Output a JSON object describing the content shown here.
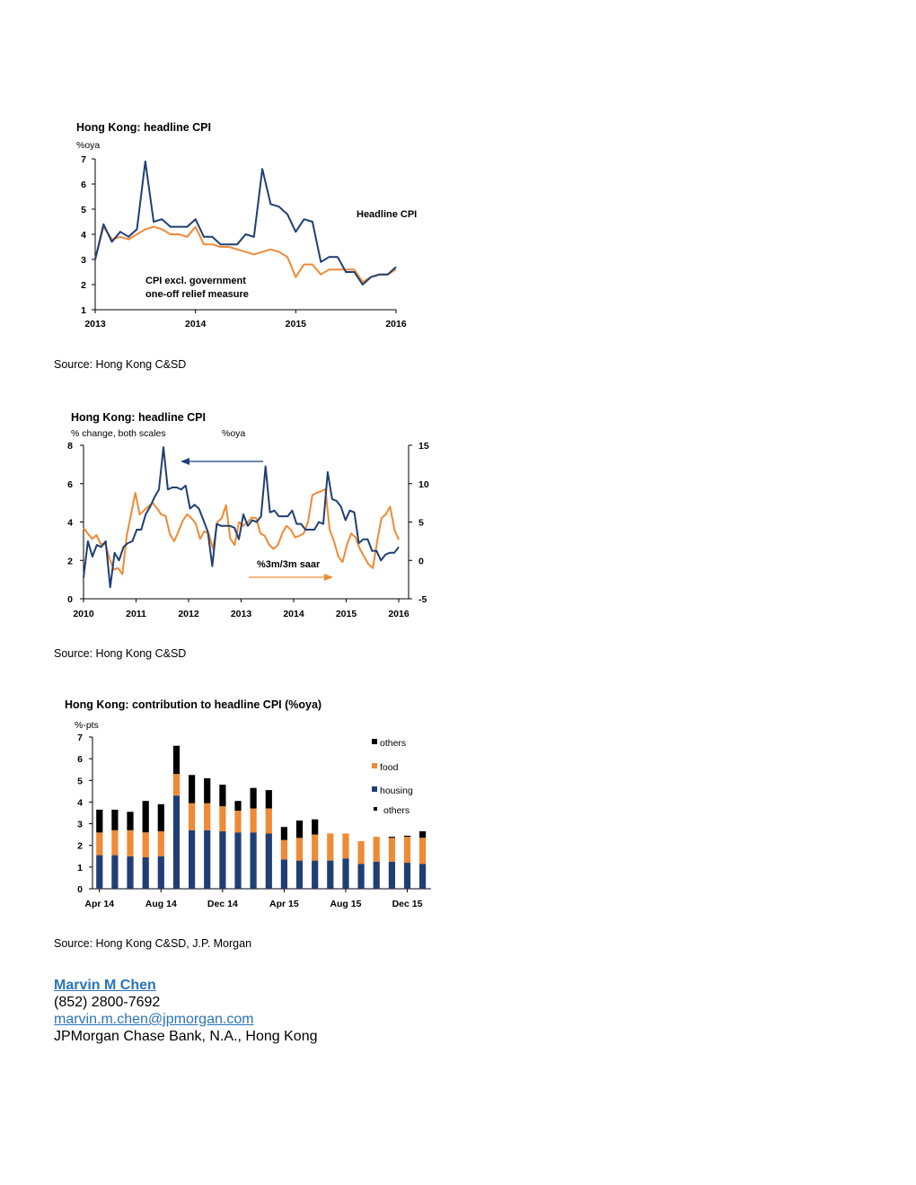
{
  "colors": {
    "navy": "#1f3f74",
    "orange": "#ef8a36",
    "black": "#000000",
    "link": "#2b73b7"
  },
  "charts": {
    "c1": {
      "source": "Source: Hong Kong C&SD",
      "chart_data": {
        "type": "line",
        "title": "Hong Kong: headline CPI",
        "unit_label": "%oya",
        "x_ticks": [
          "2013",
          "2014",
          "2015",
          "2016"
        ],
        "y_ticks": [
          "1",
          "2",
          "3",
          "4",
          "5",
          "6",
          "7"
        ],
        "ylim": [
          1,
          7
        ],
        "annotations": [
          "Headline CPI",
          "CPI excl. government",
          "one-off relief measure"
        ],
        "series": [
          {
            "name": "Headline CPI",
            "color": "#1f3f74",
            "values": [
              3.0,
              4.4,
              3.7,
              4.1,
              3.9,
              4.2,
              6.9,
              4.5,
              4.6,
              4.3,
              4.3,
              4.3,
              4.6,
              3.9,
              3.9,
              3.6,
              3.6,
              3.6,
              4.0,
              3.9,
              6.6,
              5.2,
              5.1,
              4.8,
              4.1,
              4.6,
              4.5,
              2.9,
              3.1,
              3.1,
              2.5,
              2.5,
              2.0,
              2.3,
              2.4,
              2.4,
              2.7
            ]
          },
          {
            "name": "CPI excl. government one-off relief measure",
            "color": "#ef8a36",
            "values": [
              3.0,
              4.3,
              3.8,
              3.9,
              3.8,
              4.0,
              4.2,
              4.3,
              4.2,
              4.0,
              4.0,
              3.9,
              4.3,
              3.6,
              3.6,
              3.5,
              3.5,
              3.4,
              3.3,
              3.2,
              3.3,
              3.4,
              3.3,
              3.1,
              2.3,
              2.8,
              2.8,
              2.4,
              2.6,
              2.6,
              2.6,
              2.6,
              2.1,
              2.3,
              2.4,
              2.4,
              2.6
            ]
          }
        ]
      }
    },
    "c2": {
      "source": "Source: Hong Kong C&SD",
      "chart_data": {
        "type": "line",
        "title": "Hong Kong: headline CPI",
        "left_unit": "% change, both scales",
        "right_unit": "%oya",
        "x_ticks": [
          "2010",
          "2011",
          "2012",
          "2013",
          "2014",
          "2015",
          "2016"
        ],
        "y_left_ticks": [
          "0",
          "2",
          "4",
          "6",
          "8"
        ],
        "y_right_ticks": [
          "-5",
          "0",
          "5",
          "10",
          "15"
        ],
        "ylim_left": [
          0,
          8
        ],
        "ylim_right": [
          -5,
          15
        ],
        "annotations": [
          "%3m/3m saar"
        ],
        "series": [
          {
            "name": "%oya (left axis)",
            "color": "#1f3f74",
            "axis": "left",
            "values": [
              1.1,
              3.0,
              2.2,
              2.8,
              2.7,
              3.0,
              0.6,
              2.4,
              2.0,
              2.7,
              2.9,
              3.0,
              3.6,
              3.6,
              4.4,
              4.8,
              5.3,
              5.7,
              7.9,
              5.7,
              5.8,
              5.8,
              5.7,
              5.9,
              4.7,
              4.9,
              4.7,
              4.1,
              3.5,
              1.7,
              3.9,
              3.8,
              3.8,
              3.8,
              3.7,
              3.1,
              4.4,
              3.8,
              4.1,
              4.0,
              4.3,
              6.9,
              4.5,
              4.6,
              4.3,
              4.3,
              4.3,
              4.6,
              3.9,
              3.9,
              3.6,
              3.6,
              3.6,
              4.0,
              3.9,
              6.6,
              5.2,
              5.1,
              4.8,
              4.1,
              4.6,
              4.5,
              2.9,
              3.1,
              3.1,
              2.5,
              2.5,
              2.0,
              2.3,
              2.4,
              2.4,
              2.7
            ]
          },
          {
            "name": "%3m/3m saar (right axis)",
            "color": "#ef8a36",
            "axis": "right",
            "values": [
              4.2,
              3.5,
              2.8,
              3.3,
              2.1,
              2.2,
              0.3,
              -1.2,
              -1.0,
              -1.8,
              3.2,
              6.0,
              8.8,
              6.0,
              6.5,
              7.0,
              7.5,
              6.8,
              6.0,
              5.8,
              3.4,
              2.5,
              3.8,
              5.2,
              6.0,
              5.5,
              4.8,
              2.8,
              3.8,
              3.5,
              1.5,
              5.0,
              5.5,
              7.2,
              2.8,
              2.0,
              5.0,
              4.5,
              5.0,
              5.6,
              5.5,
              3.5,
              3.2,
              2.0,
              1.5,
              2.0,
              3.5,
              4.5,
              4.0,
              3.0,
              3.2,
              3.5,
              5.0,
              8.5,
              8.8,
              9.0,
              9.3,
              4.0,
              2.5,
              0.5,
              -0.2,
              2.0,
              3.5,
              3.0,
              1.5,
              0.5,
              -0.5,
              -1.0,
              2.5,
              5.5,
              6.0,
              7.0,
              4.0,
              2.7
            ]
          }
        ]
      }
    },
    "c3": {
      "source": "Source: Hong Kong C&SD, J.P. Morgan",
      "chart_data": {
        "type": "bar",
        "stacked": true,
        "title": "Hong Kong: contribution to headline CPI (%oya)",
        "unit_label": "%-pts",
        "x_ticks": [
          "Apr 14",
          "Aug 14",
          "Dec 14",
          "Apr 15",
          "Aug 15",
          "Dec 15"
        ],
        "y_ticks": [
          "0",
          "1",
          "2",
          "3",
          "4",
          "5",
          "6",
          "7"
        ],
        "ylim": [
          0,
          7
        ],
        "categories": [
          "Apr 14",
          "May 14",
          "Jun 14",
          "Jul 14",
          "Aug 14",
          "Sep 14",
          "Oct 14",
          "Nov 14",
          "Dec 14",
          "Jan 15",
          "Feb 15",
          "Mar 15",
          "Apr 15",
          "May 15",
          "Jun 15",
          "Jul 15",
          "Aug 15",
          "Sep 15",
          "Oct 15",
          "Nov 15",
          "Dec 15",
          "Jan 16"
        ],
        "legend": [
          "others",
          "food",
          "housing",
          "others"
        ],
        "series": [
          {
            "name": "housing",
            "color": "#1f3f74",
            "values": [
              1.55,
              1.55,
              1.5,
              1.45,
              1.5,
              4.3,
              2.7,
              2.7,
              2.65,
              2.6,
              2.6,
              2.55,
              1.35,
              1.3,
              1.3,
              1.3,
              1.4,
              1.15,
              1.25,
              1.25,
              1.2,
              1.15
            ]
          },
          {
            "name": "food",
            "color": "#ef8a36",
            "values": [
              1.05,
              1.15,
              1.2,
              1.15,
              1.15,
              1.0,
              1.25,
              1.25,
              1.15,
              1.0,
              1.1,
              1.15,
              0.9,
              1.05,
              1.2,
              1.25,
              1.15,
              1.05,
              1.15,
              1.1,
              1.2,
              1.2
            ]
          },
          {
            "name": "others",
            "color": "#000000",
            "values": [
              1.05,
              0.95,
              0.85,
              1.45,
              1.25,
              1.3,
              1.3,
              1.15,
              1.0,
              0.45,
              0.95,
              0.85,
              0.6,
              0.8,
              0.7,
              0,
              0,
              0,
              0,
              0.05,
              0.05,
              0.3
            ]
          }
        ]
      }
    }
  },
  "contact": {
    "name": "Marvin M Chen",
    "phone": "(852) 2800-7692",
    "email": "marvin.m.chen@jpmorgan.com",
    "org": "JPMorgan Chase Bank, N.A., Hong Kong"
  }
}
